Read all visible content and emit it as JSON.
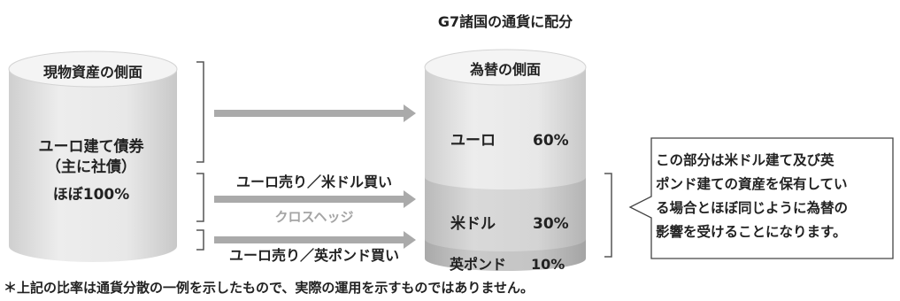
{
  "diagram": {
    "heading": "G7諸国の通貨に配分",
    "left_cylinder": {
      "title": "現物資産の側面",
      "line1": "ユーロ建て債券",
      "line2": "（主に社債）",
      "line3": "ほぼ100%"
    },
    "right_cylinder": {
      "title": "為替の側面",
      "segments": [
        {
          "currency": "ユーロ",
          "percent": "60%",
          "share": 60
        },
        {
          "currency": "米ドル",
          "percent": "30%",
          "share": 30
        },
        {
          "currency": "英ポンド",
          "percent": "10%",
          "share": 10
        }
      ]
    },
    "arrows": {
      "sell_euro_buy_usd": "ユーロ売り／米ドル買い",
      "cross_hedge": "クロスヘッジ",
      "sell_euro_buy_gbp": "ユーロ売り／英ポンド買い"
    },
    "callout": {
      "lines": [
        "この部分は米ドル建て及び英",
        "ポンド建ての資産を保有してい",
        "る場合とほぼ同じように為替の",
        "影響を受けることになります。"
      ]
    },
    "footnote": "＊上記の比率は通貨分散の一例を示したもので、実際の運用を示すものではありません。",
    "colors": {
      "cylinder_light": "#e6e6e6",
      "cylinder_mid": "#cfcfcf",
      "cylinder_dark": "#bdbdbd",
      "arrow": "#aaaaaa"
    }
  }
}
